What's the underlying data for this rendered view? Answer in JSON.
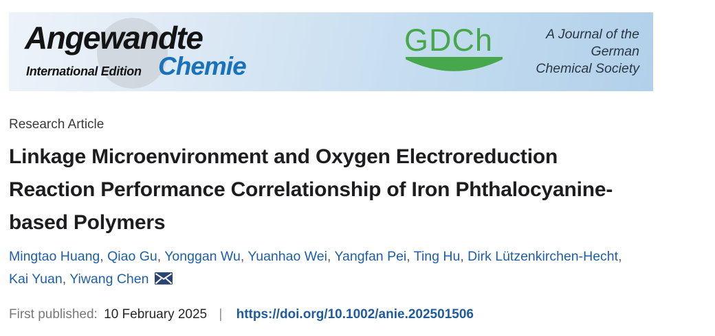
{
  "banner": {
    "journal_name": "Angewandte",
    "edition_label": "International Edition",
    "journal_name_de": "Chemie",
    "gdch_label": "GDCh",
    "society_lines": [
      "A Journal of the",
      "German",
      "Chemical Society"
    ],
    "colors": {
      "chemie_blue": "#1a73ba",
      "gdch_green": "#47a74d",
      "banner_blue_start": "#edf3fa",
      "banner_blue_end": "#b2d0ea"
    }
  },
  "article": {
    "type_label": "Research Article",
    "title": "Linkage Microenvironment and Oxygen Electroreduction Reaction Performance Correlationship of Iron Phthalocyanine-based Polymers",
    "title_lines": [
      "Linkage Microenvironment and Oxygen Electroreduction",
      "Reaction Performance Correlationship of Iron Phthalocyanine-",
      "based Polymers"
    ],
    "authors": [
      "Mingtao Huang",
      "Qiao Gu",
      "Yonggan Wu",
      "Yuanhao Wei",
      "Yangfan Pei",
      "Ting Hu",
      "Dirk Lützenkirchen-Hecht",
      "Kai Yuan",
      "Yiwang Chen"
    ],
    "author_line_break_after": "Dirk Lützenkirchen-Hecht",
    "author_color": "#1d5fa9",
    "correspondence_icon": "envelope-icon"
  },
  "publication": {
    "first_published_label": "First published:",
    "first_published_date": "10 February 2025",
    "separator": "|",
    "doi_url": "https://doi.org/10.1002/anie.202501506"
  }
}
